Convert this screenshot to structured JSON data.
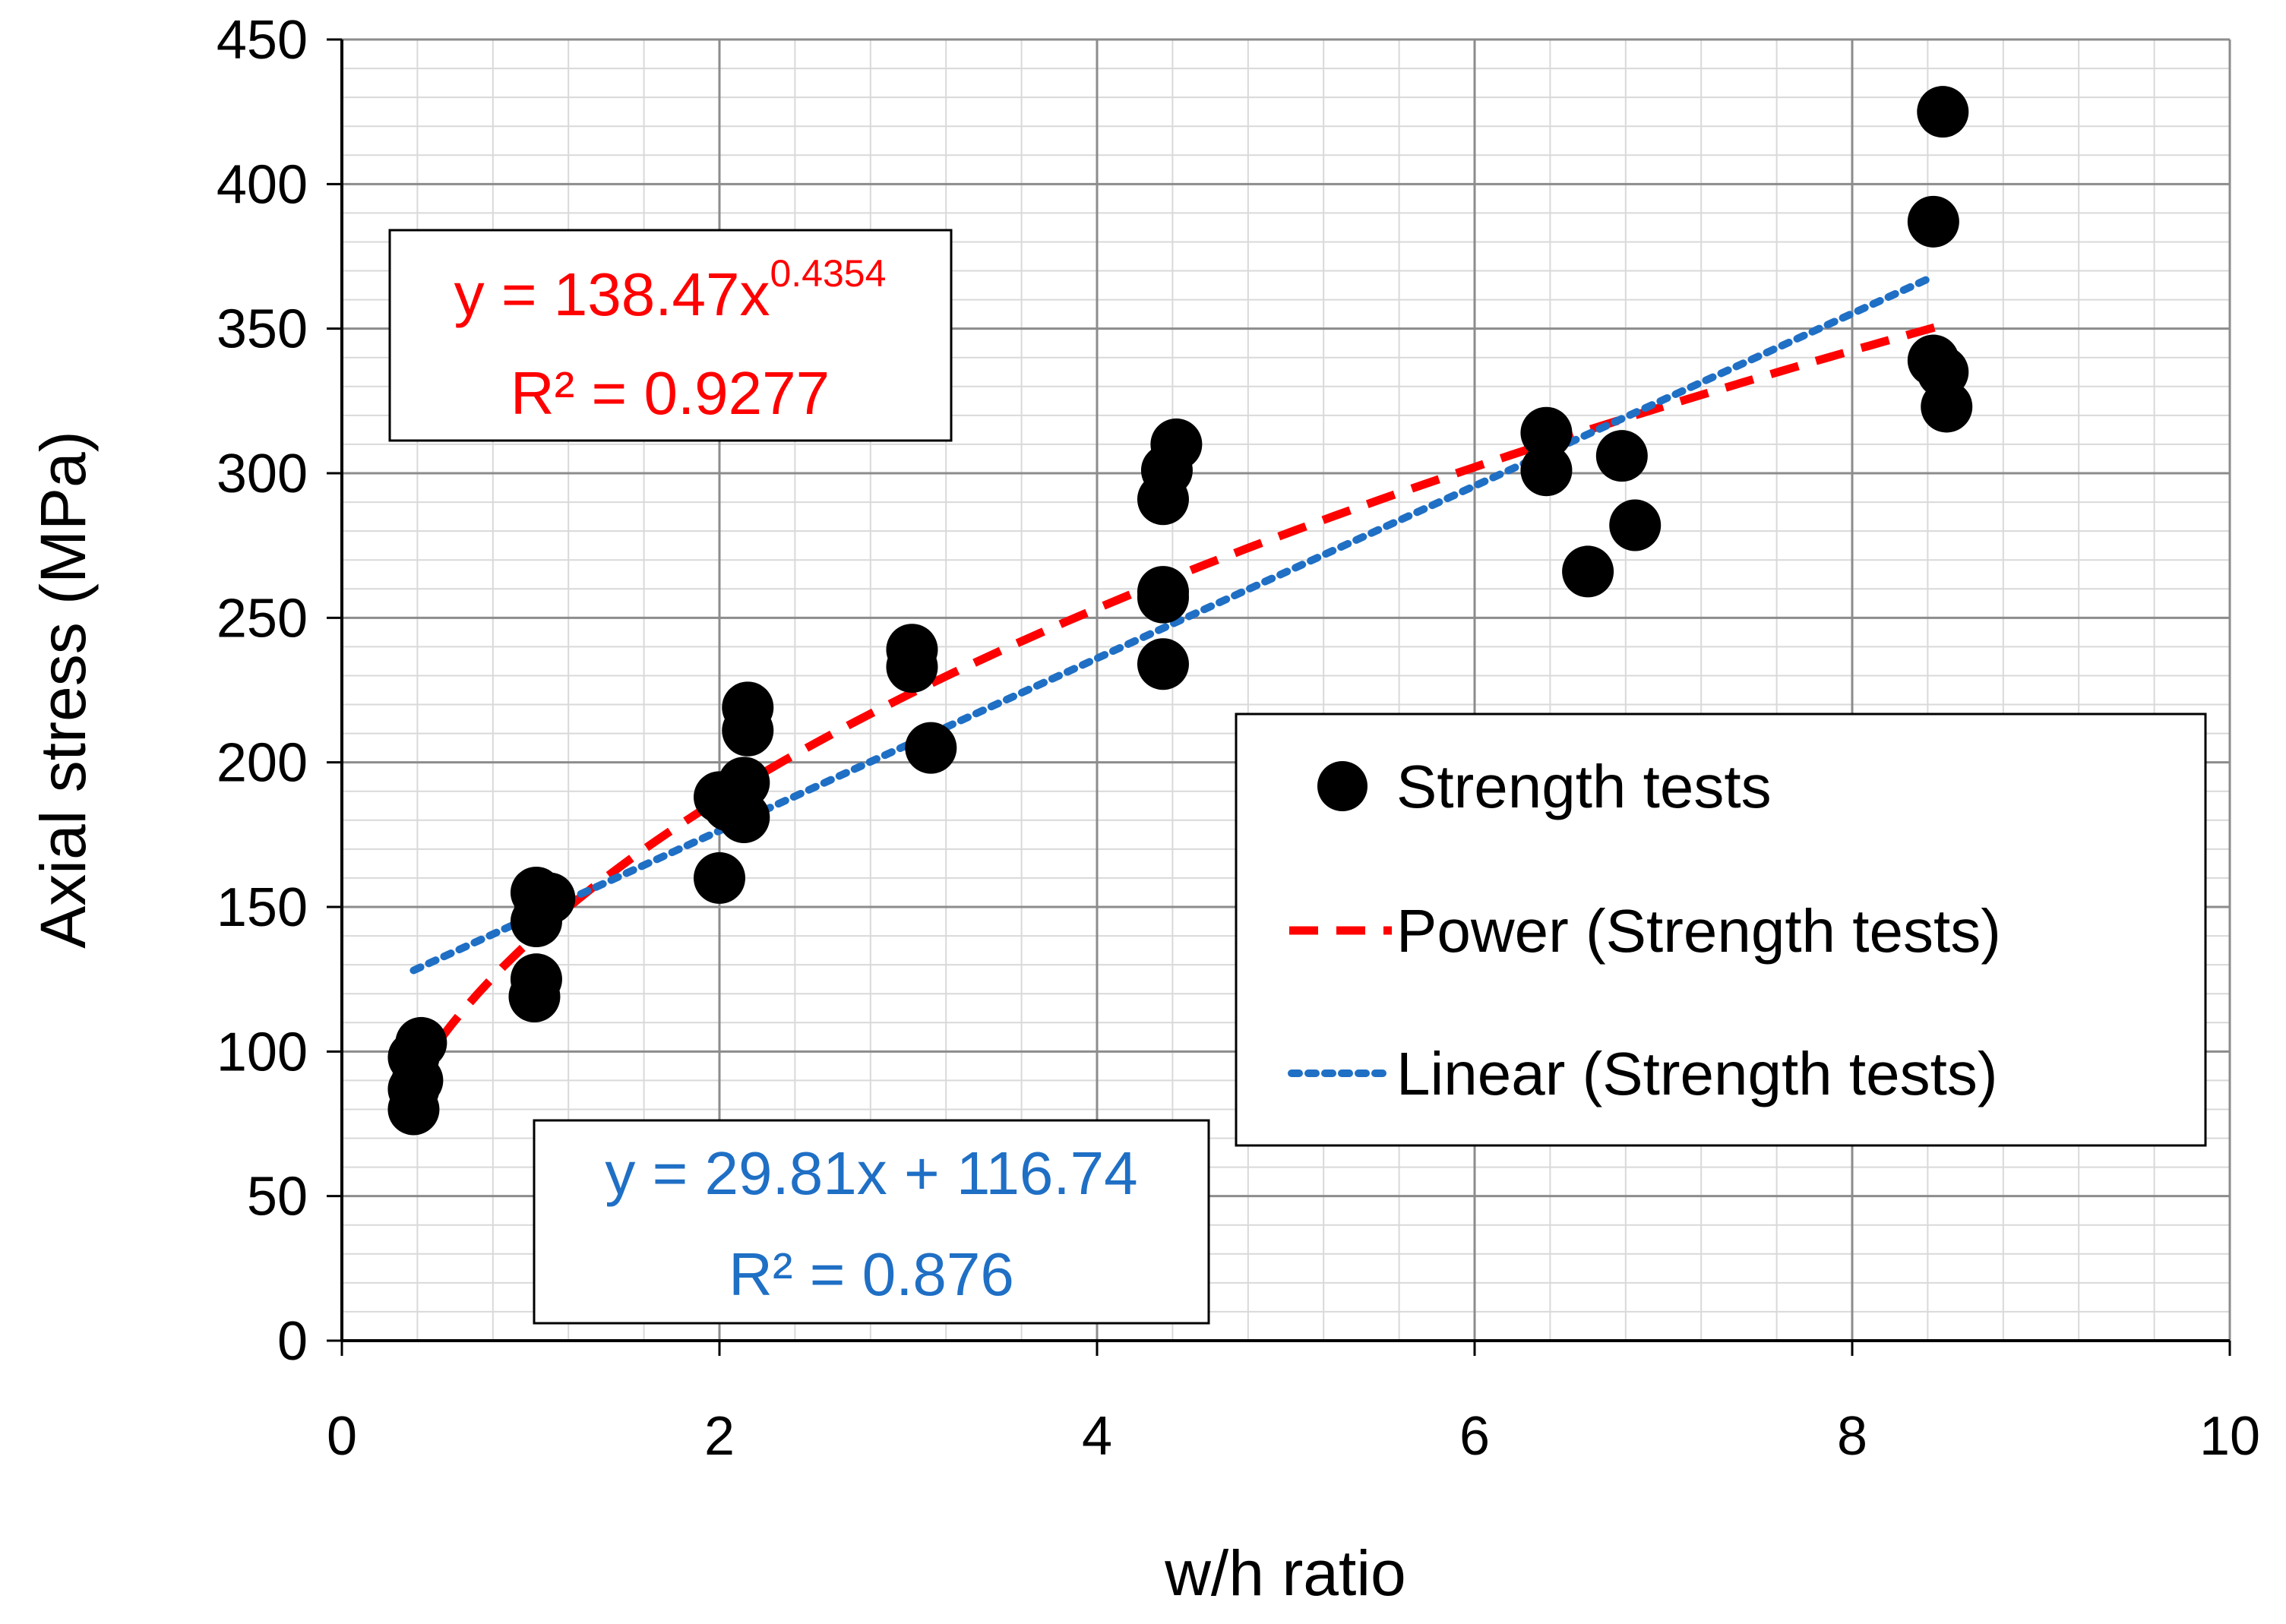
{
  "chart_data": {
    "type": "scatter",
    "title": "",
    "xlabel": "w/h ratio",
    "ylabel": "Axial stress (MPa)",
    "xlim": [
      0,
      10
    ],
    "ylim": [
      0,
      450
    ],
    "x_ticks": [
      "0",
      "2",
      "4",
      "6",
      "8",
      "10"
    ],
    "y_ticks": [
      "0",
      "50",
      "100",
      "150",
      "200",
      "250",
      "300",
      "350",
      "400",
      "450"
    ],
    "grid": true,
    "legend_position": "middle-right",
    "series": [
      {
        "name": "Strength tests",
        "kind": "scatter",
        "color": "#000000",
        "points": [
          [
            0.38,
            80
          ],
          [
            0.38,
            87
          ],
          [
            0.4,
            90
          ],
          [
            0.38,
            98
          ],
          [
            0.42,
            103
          ],
          [
            1.02,
            119
          ],
          [
            1.03,
            125
          ],
          [
            1.03,
            145
          ],
          [
            1.05,
            150
          ],
          [
            1.03,
            155
          ],
          [
            1.1,
            153
          ],
          [
            2.0,
            160
          ],
          [
            2.0,
            188
          ],
          [
            2.05,
            185
          ],
          [
            2.13,
            181
          ],
          [
            2.13,
            193
          ],
          [
            2.15,
            211
          ],
          [
            2.15,
            219
          ],
          [
            3.02,
            233
          ],
          [
            3.02,
            239
          ],
          [
            3.12,
            205
          ],
          [
            4.35,
            234
          ],
          [
            4.35,
            257
          ],
          [
            4.35,
            259
          ],
          [
            4.35,
            291
          ],
          [
            4.37,
            301
          ],
          [
            4.42,
            310
          ],
          [
            6.38,
            301
          ],
          [
            6.38,
            314
          ],
          [
            6.6,
            266
          ],
          [
            6.78,
            306
          ],
          [
            6.85,
            282
          ],
          [
            8.43,
            339
          ],
          [
            8.43,
            387
          ],
          [
            8.48,
            425
          ],
          [
            8.48,
            335
          ],
          [
            8.5,
            323
          ]
        ]
      },
      {
        "name": "Power (Strength tests)",
        "kind": "power-trendline",
        "color": "#ff0000",
        "coefficient": 138.47,
        "exponent": 0.4354,
        "x_range": [
          0.38,
          8.5
        ]
      },
      {
        "name": "Linear (Strength tests)",
        "kind": "linear-trendline",
        "color": "#1f6fc5",
        "slope": 29.81,
        "intercept": 116.74,
        "x_range": [
          0.38,
          8.43
        ]
      }
    ],
    "annotations": {
      "power": {
        "eq_base": "y = 138.47x",
        "eq_exp": "0.4354",
        "r2": "R² = 0.9277",
        "color": "#ff0000"
      },
      "linear": {
        "eq": "y = 29.81x + 116.74",
        "r2": "R² = 0.876",
        "color": "#1f6fc5"
      }
    }
  }
}
